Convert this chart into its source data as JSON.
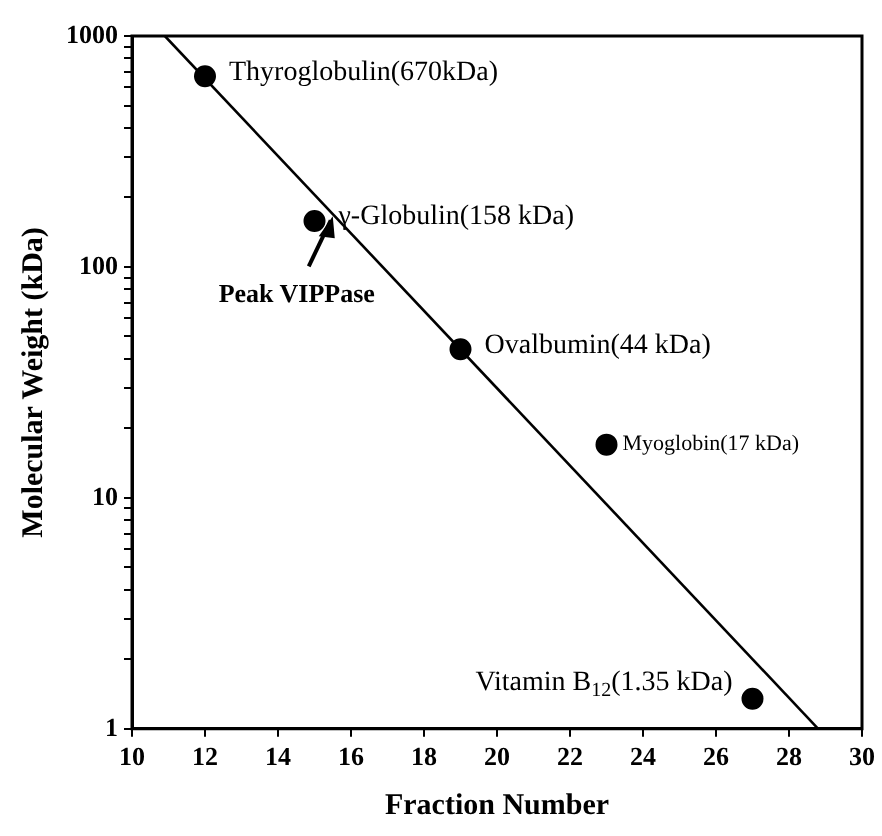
{
  "chart_data": {
    "type": "scatter",
    "xlabel": "Fraction Number",
    "ylabel": "Molecular Weight (kDa)",
    "log": "y",
    "marker": "circle",
    "xlim": [
      10,
      30
    ],
    "xticks": [
      10,
      12,
      14,
      16,
      18,
      20,
      22,
      24,
      26,
      28,
      30
    ],
    "ylim": [
      1,
      1000
    ],
    "yticks": [
      1,
      {
        "value": 2,
        "label": null
      },
      {
        "value": 3,
        "label": null
      },
      {
        "value": 4,
        "label": null
      },
      {
        "value": 5,
        "label": null
      },
      {
        "value": 6,
        "label": null
      },
      {
        "value": 7,
        "label": null
      },
      {
        "value": 8,
        "label": null
      },
      {
        "value": 9,
        "label": null
      },
      10,
      {
        "value": 20,
        "label": null
      },
      {
        "value": 30,
        "label": null
      },
      {
        "value": 40,
        "label": null
      },
      {
        "value": 50,
        "label": null
      },
      {
        "value": 60,
        "label": null
      },
      {
        "value": 70,
        "label": null
      },
      {
        "value": 80,
        "label": null
      },
      {
        "value": 90,
        "label": null
      },
      100,
      {
        "value": 200,
        "label": null
      },
      {
        "value": 300,
        "label": null
      },
      {
        "value": 400,
        "label": null
      },
      {
        "value": 500,
        "label": null
      },
      {
        "value": 600,
        "label": null
      },
      {
        "value": 700,
        "label": null
      },
      {
        "value": 800,
        "label": null
      },
      {
        "value": 900,
        "label": null
      },
      1000
    ],
    "series": [
      {
        "color": "#000000",
        "x": [
          12,
          15,
          19,
          23,
          27
        ],
        "values": [
          670,
          158,
          44,
          17,
          1.35
        ]
      },
      {
        "type": "line",
        "color": "#000000",
        "marker": "none",
        "line_style": "solid",
        "x": [
          10.9,
          28.8
        ],
        "values": [
          1000,
          1
        ]
      }
    ],
    "annotations": [
      {
        "text": "Thyroglobulin(670kDa)",
        "x": 12,
        "y": 670
      },
      {
        "text": "γ-Globulin(158 kDa)",
        "x": 15,
        "y": 158
      },
      {
        "text": "Peak VIPPase",
        "x": 15.5,
        "y": 169
      },
      {
        "text": "Ovalbumin(44 kDa)",
        "x": 19,
        "y": 44
      },
      {
        "text": "Myoglobin(17 kDa)",
        "x": 23,
        "y": 17
      },
      {
        "text": "Vitamin B$_{12}$(1.35 kDa)",
        "x": 27,
        "y": 1.35
      }
    ]
  }
}
